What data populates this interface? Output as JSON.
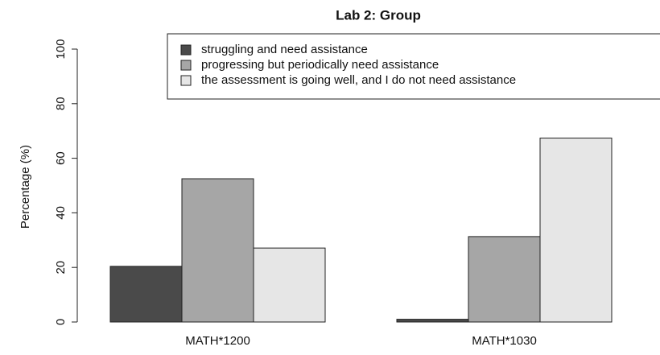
{
  "chart_data": {
    "type": "bar",
    "title": "Lab 2: Group",
    "ylabel": "Percentage (%)",
    "categories": [
      "MATH*1200",
      "MATH*1030"
    ],
    "series": [
      {
        "name": "struggling and need assistance",
        "color": "#4a4a4a",
        "values": [
          20.4,
          1
        ]
      },
      {
        "name": "progressing but periodically need assistance",
        "color": "#a6a6a6",
        "values": [
          52.5,
          31.3
        ]
      },
      {
        "name": "the assessment is going well, and I do not need assistance",
        "color": "#e6e6e6",
        "values": [
          27.1,
          67.4
        ]
      }
    ],
    "ylim": [
      0,
      100
    ],
    "yticks": [
      0,
      20,
      40,
      60,
      80,
      100
    ],
    "legend": "top-right"
  }
}
